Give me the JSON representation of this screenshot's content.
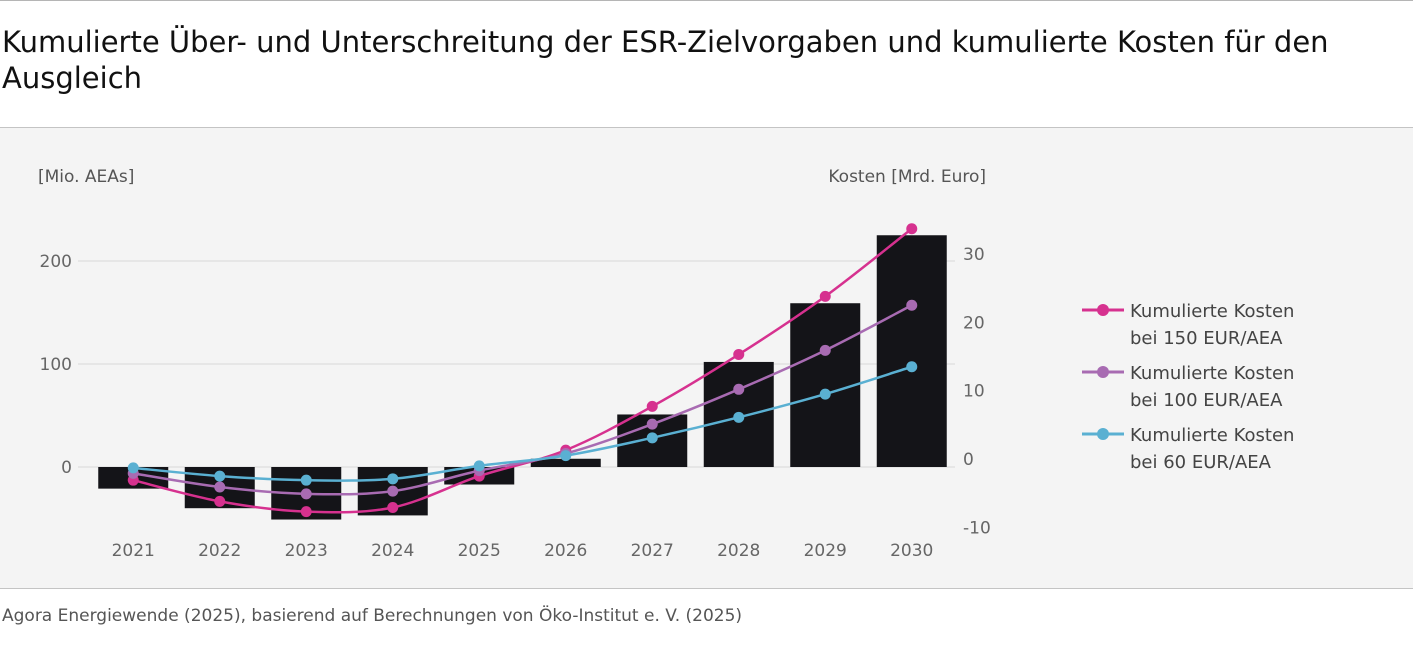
{
  "title": "Kumulierte Über- und Unterschreitung der ESR-Zielvorgaben und kumulierte Kosten für den Ausgleich",
  "source": "Agora Energiewende (2025), basierend auf Berechnungen von Öko-Institut e. V. (2025)",
  "colors": {
    "bars": "#141418",
    "grid": "#e2e2e2",
    "series_150": "#d6318f",
    "series_100": "#a86bb2",
    "series_60": "#5ab0d2"
  },
  "chart_data": {
    "type": "bar+line",
    "categories": [
      "2021",
      "2022",
      "2023",
      "2024",
      "2025",
      "2026",
      "2027",
      "2028",
      "2029",
      "2030"
    ],
    "left_axis": {
      "label": "[Mio. AEAs]",
      "ticks": [
        "200",
        "100",
        "0"
      ],
      "tick_values": [
        200,
        100,
        0
      ],
      "range": [
        -55,
        230
      ]
    },
    "right_axis": {
      "label": "Kosten [Mrd. Euro]",
      "ticks": [
        "30",
        "20",
        "10",
        "0",
        "-10"
      ],
      "tick_values": [
        30,
        20,
        10,
        0,
        -10
      ]
    },
    "bars": {
      "values": [
        -21,
        -40,
        -51,
        -47,
        -17,
        8,
        51,
        102,
        159,
        225
      ]
    },
    "series": [
      {
        "name_line1": "Kumulierte Kosten",
        "name_line2": "bei 150 EUR/AEA",
        "color_key": "series_150",
        "values": [
          -3.1,
          -6.2,
          -7.7,
          -7.1,
          -2.5,
          1.3,
          7.7,
          15.3,
          23.8,
          33.7
        ]
      },
      {
        "name_line1": "Kumulierte Kosten",
        "name_line2": "bei 100 EUR/AEA",
        "color_key": "series_100",
        "values": [
          -2.1,
          -4.1,
          -5.1,
          -4.7,
          -1.7,
          0.8,
          5.1,
          10.2,
          15.9,
          22.5
        ]
      },
      {
        "name_line1": "Kumulierte Kosten",
        "name_line2": "bei 60 EUR/AEA",
        "color_key": "series_60",
        "values": [
          -1.3,
          -2.5,
          -3.1,
          -2.9,
          -1.0,
          0.5,
          3.1,
          6.1,
          9.5,
          13.5
        ]
      }
    ]
  }
}
